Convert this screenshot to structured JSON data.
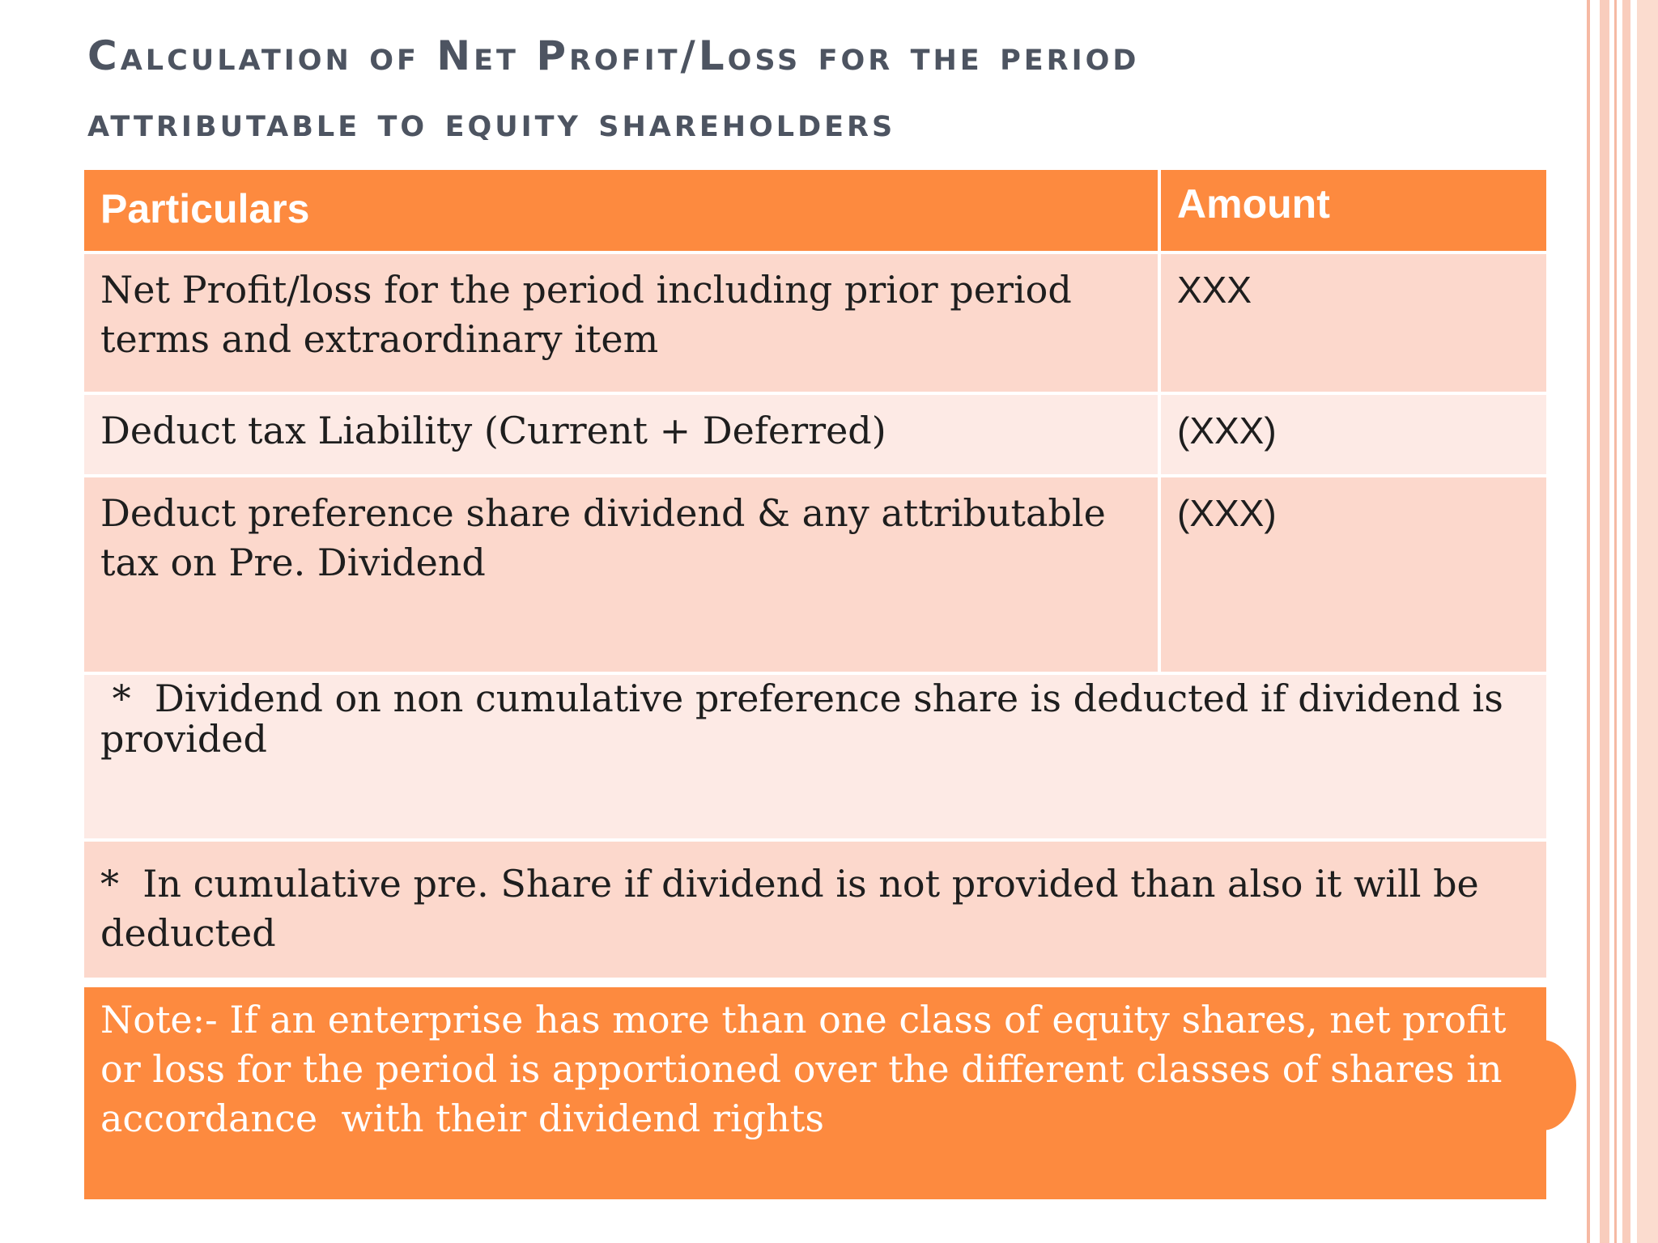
{
  "title": {
    "line1": "Calculation of Net Profit/Loss for the period",
    "line2": "attributable to equity shareholders"
  },
  "table": {
    "headers": {
      "particulars": "Particulars",
      "amount": "Amount"
    },
    "rows": [
      {
        "particulars": "Net Profit/loss for the period including prior period terms and extraordinary item",
        "amount": "XXX"
      },
      {
        "particulars": "Deduct tax Liability (Current + Deferred)",
        "amount": "(XXX)"
      },
      {
        "particulars": "Deduct preference share dividend & any attributable tax on Pre. Dividend",
        "amount": "(XXX)"
      }
    ],
    "footnotes": [
      " *  Dividend on non cumulative preference share is deducted if dividend is provided",
      "*  In cumulative pre. Share if dividend is not provided than also it will be deducted"
    ],
    "note": "Note:- If an enterprise has more than one class of equity shares, net profit or loss for the period is apportioned over the different classes of shares in accordance  with their dividend rights"
  },
  "colors": {
    "accent": "#fd8a3f",
    "row_dark": "#fcd8cc",
    "row_light": "#fdeae5",
    "title": "#4d5461"
  }
}
